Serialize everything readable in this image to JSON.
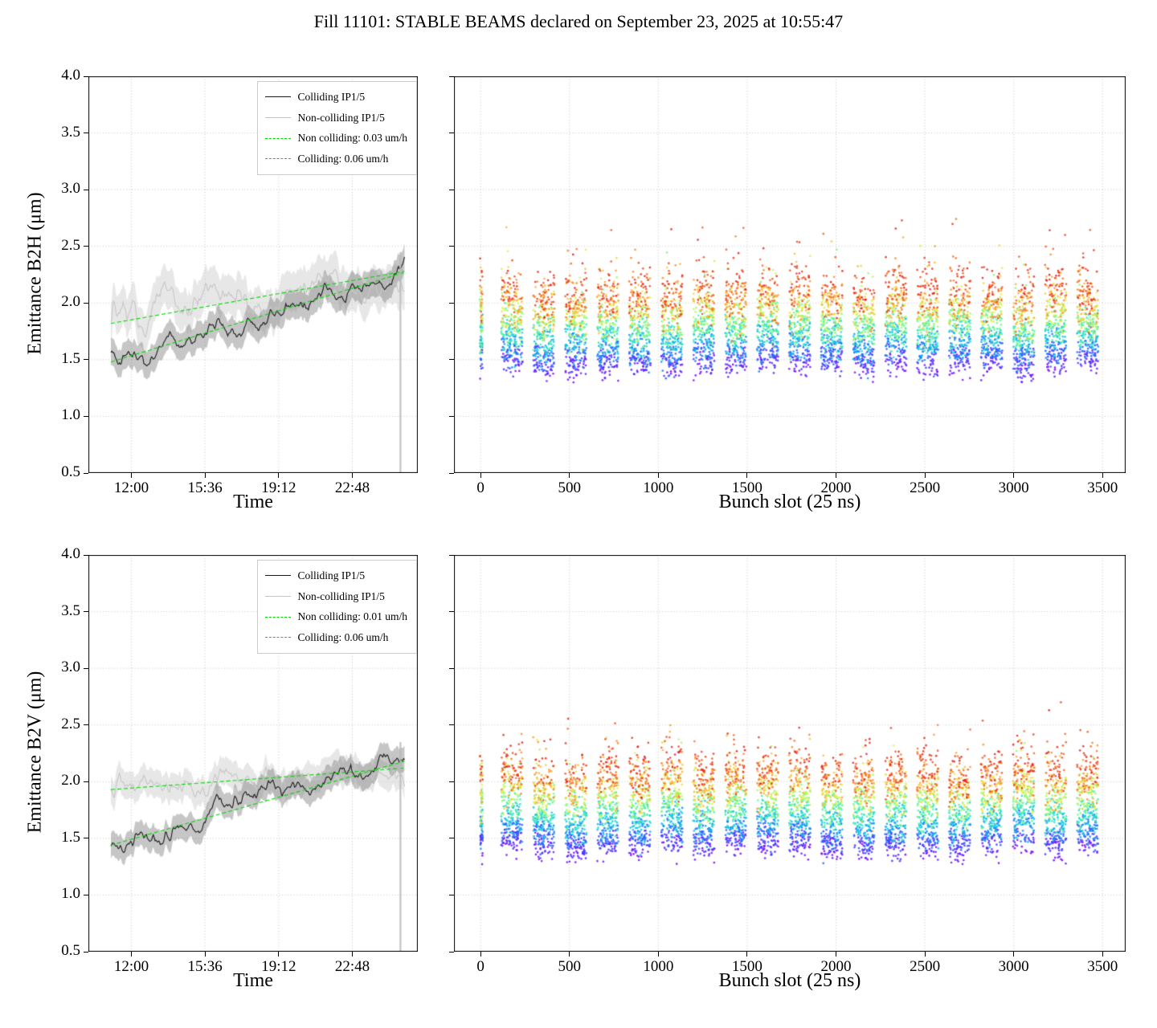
{
  "title": "Fill 11101: STABLE BEAMS declared on September 23, 2025 at 10:55:47",
  "style": {
    "grid_color": "#c4c4c4",
    "frame_color": "#000000",
    "fit_color": "#00d800",
    "end_drop_color": "rgba(185,185,185,0.85)"
  },
  "colormap_rainbow": [
    {
      "t": 0.0,
      "color": [
        127,
        0,
        255
      ]
    },
    {
      "t": 0.18,
      "color": [
        40,
        90,
        255
      ]
    },
    {
      "t": 0.32,
      "color": [
        0,
        190,
        235
      ]
    },
    {
      "t": 0.45,
      "color": [
        60,
        235,
        190
      ]
    },
    {
      "t": 0.55,
      "color": [
        120,
        250,
        120
      ]
    },
    {
      "t": 0.68,
      "color": [
        225,
        245,
        70
      ]
    },
    {
      "t": 0.8,
      "color": [
        255,
        170,
        50
      ]
    },
    {
      "t": 1.0,
      "color": [
        226,
        26,
        28
      ]
    }
  ],
  "chart_data": [
    {
      "id": "emittance-b2h-vs-time",
      "type": "line",
      "xlabel": "Time",
      "ylabel": "Emittance B2H (μm)",
      "ylim": [
        0.5,
        4.0
      ],
      "yticks": [
        0.5,
        1.0,
        1.5,
        2.0,
        2.5,
        3.0,
        3.5,
        4.0
      ],
      "x_hours_lim": [
        9.9,
        26.0
      ],
      "xticks_hours": [
        12.0,
        15.6,
        19.2,
        22.8
      ],
      "xticklabels": [
        "12:00",
        "15:36",
        "19:12",
        "22:48"
      ],
      "data_hours": [
        11.0,
        25.35
      ],
      "grid": true,
      "legend": [
        {
          "label": "Colliding IP1/5",
          "style": "solid",
          "color": "#1a1a1a"
        },
        {
          "label": "Non-colliding IP1/5",
          "style": "solid",
          "color": "#c4c4c4"
        },
        {
          "label": "Non colliding: 0.03 um/h",
          "style": "dashed",
          "color": "#00d800"
        },
        {
          "label": "Colliding: 0.06 um/h",
          "style": "dashed",
          "color": "#00d800"
        }
      ],
      "series": [
        {
          "name": "Colliding IP1/5",
          "color": "#1a1a1a",
          "band_color": "rgba(128,128,128,0.45)",
          "start": 1.5,
          "end": 2.27,
          "dip": 0.06,
          "noise": 0.028,
          "band": 0.12,
          "seed": 7
        },
        {
          "name": "Non-colliding IP1/5",
          "color": "#c6c6c6",
          "band_color": "rgba(212,212,212,0.55)",
          "start": 1.86,
          "end": 2.2,
          "dip": 0.0,
          "noise": 0.042,
          "band": 0.17,
          "seed": 13
        }
      ],
      "fits": [
        {
          "label": "Non colliding: 0.03 um/h",
          "rate_um_per_h": 0.03,
          "start": 1.82,
          "end": 2.28
        },
        {
          "label": "Colliding: 0.06 um/h",
          "rate_um_per_h": 0.06,
          "start": 1.48,
          "end": 2.27
        }
      ],
      "end_drop": {
        "hour": 25.15,
        "y_top": 2.45
      }
    },
    {
      "id": "emittance-b2h-vs-bunch-slot",
      "type": "scatter",
      "xlabel": "Bunch slot (25 ns)",
      "ylabel": "",
      "ylim": [
        0.5,
        4.0
      ],
      "yticks": [
        0.5,
        1.0,
        1.5,
        2.0,
        2.5,
        3.0,
        3.5,
        4.0
      ],
      "xlim": [
        -150,
        3630
      ],
      "xticks": [
        0,
        500,
        1000,
        1500,
        2000,
        2500,
        3000,
        3500
      ],
      "color_encodes": "time during fill (violet = early, red = late)",
      "scatter_model": {
        "seed": 101,
        "injection": {
          "center": 4,
          "half_width": 8,
          "points": 90
        },
        "trains": {
          "count": 19,
          "first_center": 176,
          "spacing": 180,
          "half_width": 60,
          "points": 330
        },
        "base_emittance": 1.44,
        "growth": 0.7,
        "sigma": 0.085,
        "train_jitter": 0.02,
        "ymin": 1.3,
        "outlier_p": 0.05,
        "outlier_min": 0.1,
        "outlier_max": 0.55
      }
    },
    {
      "id": "emittance-b2v-vs-time",
      "type": "line",
      "xlabel": "Time",
      "ylabel": "Emittance B2V (μm)",
      "ylim": [
        0.5,
        4.0
      ],
      "yticks": [
        0.5,
        1.0,
        1.5,
        2.0,
        2.5,
        3.0,
        3.5,
        4.0
      ],
      "x_hours_lim": [
        9.9,
        26.0
      ],
      "xticks_hours": [
        12.0,
        15.6,
        19.2,
        22.8
      ],
      "xticklabels": [
        "12:00",
        "15:36",
        "19:12",
        "22:48"
      ],
      "data_hours": [
        11.0,
        25.35
      ],
      "grid": true,
      "legend": [
        {
          "label": "Colliding IP1/5",
          "style": "solid",
          "color": "#1a1a1a"
        },
        {
          "label": "Non-colliding IP1/5",
          "style": "solid",
          "color": "#c4c4c4"
        },
        {
          "label": "Non colliding: 0.01 um/h",
          "style": "dashed",
          "color": "#00d800"
        },
        {
          "label": "Colliding: 0.06 um/h",
          "style": "dashed",
          "color": "#00d800"
        }
      ],
      "series": [
        {
          "name": "Colliding IP1/5",
          "color": "#1a1a1a",
          "band_color": "rgba(128,128,128,0.45)",
          "start": 1.47,
          "end": 2.21,
          "dip": 0.05,
          "noise": 0.024,
          "band": 0.11,
          "seed": 21
        },
        {
          "name": "Non-colliding IP1/5",
          "color": "#c6c6c6",
          "band_color": "rgba(212,212,212,0.55)",
          "start": 1.92,
          "end": 2.12,
          "dip": 0.0,
          "noise": 0.03,
          "band": 0.12,
          "seed": 34
        }
      ],
      "fits": [
        {
          "label": "Non colliding: 0.01 um/h",
          "rate_um_per_h": 0.01,
          "start": 1.93,
          "end": 2.12
        },
        {
          "label": "Colliding: 0.06 um/h",
          "rate_um_per_h": 0.06,
          "start": 1.44,
          "end": 2.18
        }
      ],
      "end_drop": {
        "hour": 25.15,
        "y_top": 2.35
      }
    },
    {
      "id": "emittance-b2v-vs-bunch-slot",
      "type": "scatter",
      "xlabel": "Bunch slot (25 ns)",
      "ylabel": "",
      "ylim": [
        0.5,
        4.0
      ],
      "yticks": [
        0.5,
        1.0,
        1.5,
        2.0,
        2.5,
        3.0,
        3.5,
        4.0
      ],
      "xlim": [
        -150,
        3630
      ],
      "xticks": [
        0,
        500,
        1000,
        1500,
        2000,
        2500,
        3000,
        3500
      ],
      "color_encodes": "time during fill (violet = early, red = late)",
      "scatter_model": {
        "seed": 202,
        "injection": {
          "center": 4,
          "half_width": 8,
          "points": 90
        },
        "trains": {
          "count": 19,
          "first_center": 176,
          "spacing": 180,
          "half_width": 60,
          "points": 330
        },
        "base_emittance": 1.4,
        "growth": 0.74,
        "sigma": 0.08,
        "train_jitter": 0.02,
        "ymin": 1.27,
        "outlier_p": 0.045,
        "outlier_min": 0.08,
        "outlier_max": 0.45
      }
    }
  ]
}
